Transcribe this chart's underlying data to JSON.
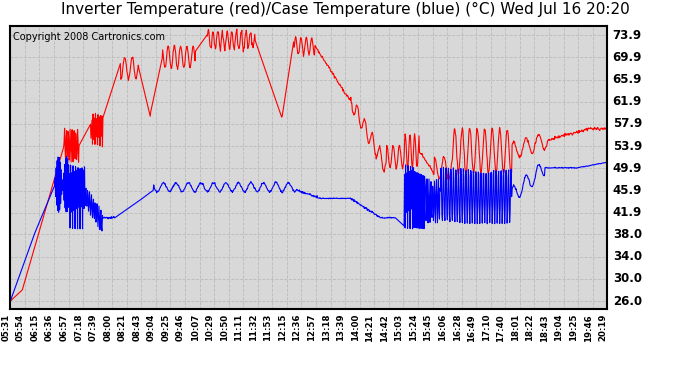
{
  "title": "Inverter Temperature (red)/Case Temperature (blue) (°C) Wed Jul 16 20:20",
  "copyright": "Copyright 2008 Cartronics.com",
  "yticks": [
    26.0,
    30.0,
    34.0,
    38.0,
    41.9,
    45.9,
    49.9,
    53.9,
    57.9,
    61.9,
    65.9,
    69.9,
    73.9
  ],
  "ymin": 24.5,
  "ymax": 75.5,
  "xtick_labels": [
    "05:31",
    "05:54",
    "06:15",
    "06:36",
    "06:57",
    "07:18",
    "07:39",
    "08:00",
    "08:21",
    "08:43",
    "09:04",
    "09:25",
    "09:46",
    "10:07",
    "10:29",
    "10:50",
    "11:11",
    "11:32",
    "11:53",
    "12:15",
    "12:36",
    "12:57",
    "13:18",
    "13:39",
    "14:00",
    "14:21",
    "14:42",
    "15:03",
    "15:24",
    "15:45",
    "16:06",
    "16:28",
    "16:49",
    "17:10",
    "17:40",
    "18:01",
    "18:22",
    "18:43",
    "19:04",
    "19:25",
    "19:46",
    "20:19"
  ],
  "background_color": "#ffffff",
  "plot_bg_color": "#d8d8d8",
  "grid_color": "#bbbbbb",
  "red_color": "#ff0000",
  "blue_color": "#0000ff",
  "title_fontsize": 11,
  "copyright_fontsize": 7
}
